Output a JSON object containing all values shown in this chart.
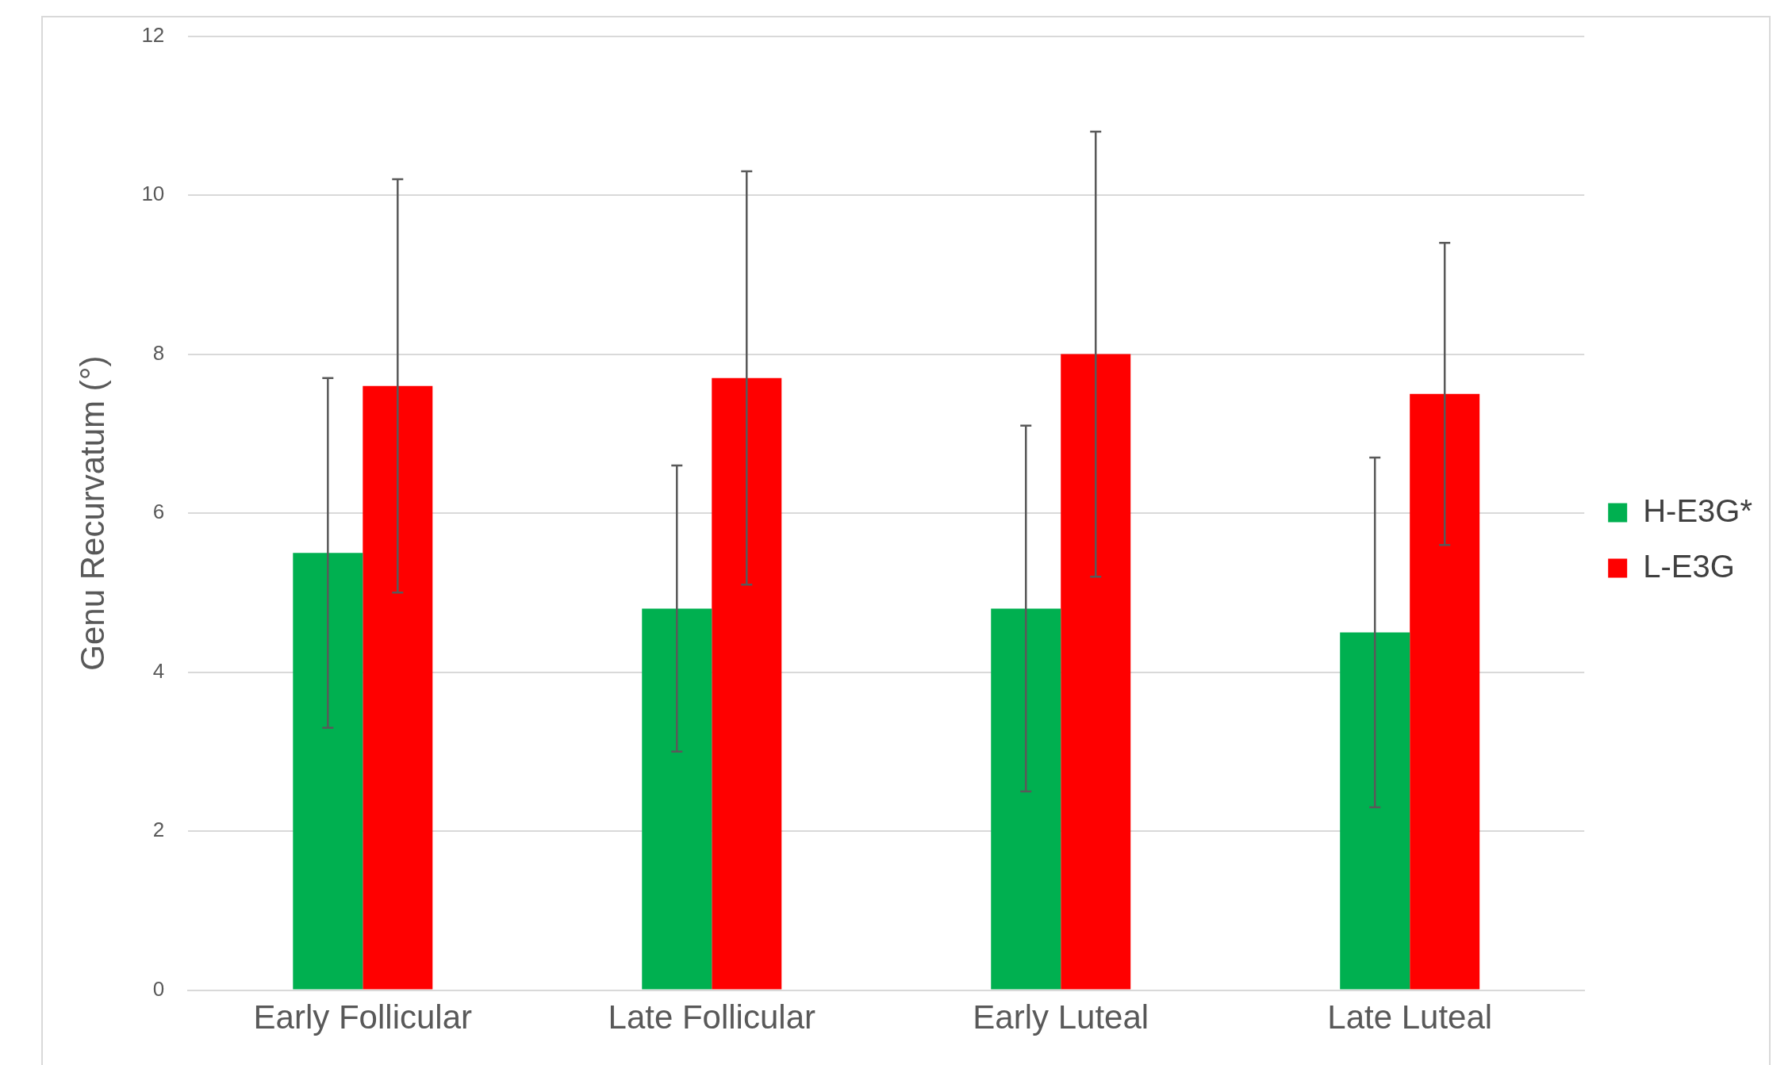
{
  "chart_data": {
    "type": "bar",
    "ylabel": "Genu Recurvatum (°)",
    "categories": [
      "Early Follicular",
      "Late Follicular",
      "Early Luteal",
      "Late Luteal"
    ],
    "series": [
      {
        "name": "H-E3G*",
        "color": "#00b050",
        "values": [
          5.5,
          4.8,
          4.8,
          4.5
        ],
        "errors": [
          2.2,
          1.8,
          2.3,
          2.2
        ]
      },
      {
        "name": "L-E3G",
        "color": "#ff0000",
        "values": [
          7.6,
          7.7,
          8.0,
          7.5
        ],
        "errors": [
          2.6,
          2.6,
          2.8,
          1.9
        ]
      }
    ],
    "ylim": [
      0,
      12
    ],
    "yticks": [
      0,
      2,
      4,
      6,
      8,
      10,
      12
    ],
    "grid": "y",
    "legend": "right"
  }
}
